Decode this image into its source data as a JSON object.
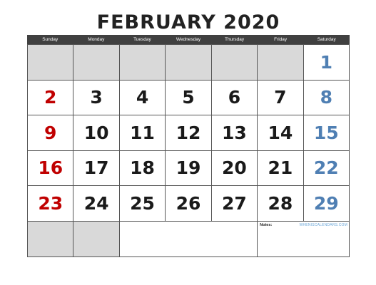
{
  "title": "FEBRUARY 2020",
  "weekdays": [
    "Sunday",
    "Monday",
    "Tuesday",
    "Wednesday",
    "Thursday",
    "Friday",
    "Saturday"
  ],
  "weeks": [
    [
      "",
      "",
      "",
      "",
      "",
      "",
      "1"
    ],
    [
      "2",
      "3",
      "4",
      "5",
      "6",
      "7",
      "8"
    ],
    [
      "9",
      "10",
      "11",
      "12",
      "13",
      "14",
      "15"
    ],
    [
      "16",
      "17",
      "18",
      "19",
      "20",
      "21",
      "22"
    ],
    [
      "23",
      "24",
      "25",
      "26",
      "27",
      "28",
      "29"
    ]
  ],
  "notes_label": "Notes:",
  "brand": "WHENISCALENDARS.COM",
  "colors": {
    "sunday": "#c00000",
    "saturday": "#4f7fb3",
    "empty_cell": "#d9d9d9",
    "header_bg": "#404040"
  }
}
